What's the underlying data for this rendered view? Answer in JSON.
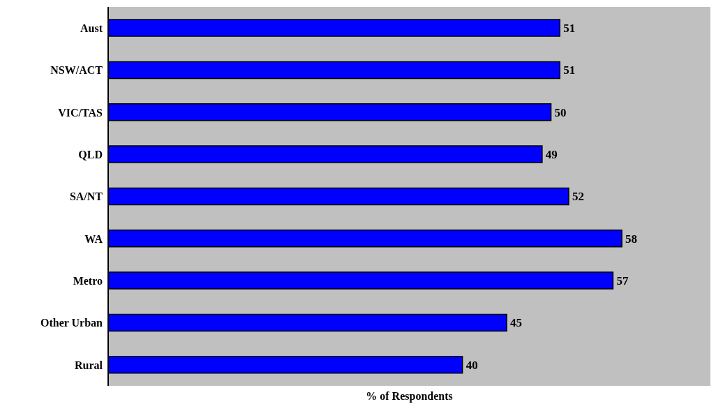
{
  "chart_data": {
    "type": "bar",
    "orientation": "horizontal",
    "categories": [
      "Aust",
      "NSW/ACT",
      "VIC/TAS",
      "QLD",
      "SA/NT",
      "WA",
      "Metro",
      "Other Urban",
      "Rural"
    ],
    "values": [
      51,
      51,
      50,
      49,
      52,
      58,
      57,
      45,
      40
    ],
    "color": "#0000ff",
    "xlim": [
      0,
      68
    ],
    "xlabel": "% of Respondents",
    "data_labels": true
  }
}
